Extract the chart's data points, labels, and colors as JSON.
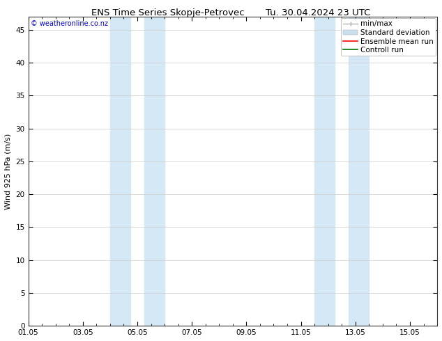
{
  "title_left": "ENS Time Series Skopje-Petrovec",
  "title_right": "Tu. 30.04.2024 23 UTC",
  "ylabel": "Wind 925 hPa (m/s)",
  "watermark": "© weatheronline.co.nz",
  "xtick_labels": [
    "01.05",
    "03.05",
    "05.05",
    "07.05",
    "09.05",
    "11.05",
    "13.05",
    "15.05"
  ],
  "xtick_positions": [
    0,
    2,
    4,
    6,
    8,
    10,
    12,
    14
  ],
  "ylim": [
    0,
    47
  ],
  "ytick_positions": [
    0,
    5,
    10,
    15,
    20,
    25,
    30,
    35,
    40,
    45
  ],
  "ytick_labels": [
    "0",
    "5",
    "10",
    "15",
    "20",
    "25",
    "30",
    "35",
    "40",
    "45"
  ],
  "shaded_regions": [
    {
      "xstart": 3.0,
      "xend": 3.5,
      "color": "#dbeaf5"
    },
    {
      "xstart": 3.5,
      "xend": 4.5,
      "color": "#dbeaf5"
    },
    {
      "xstart": 4.5,
      "xend": 5.0,
      "color": "#dbeaf5"
    },
    {
      "xstart": 10.5,
      "xend": 11.0,
      "color": "#dbeaf5"
    },
    {
      "xstart": 11.0,
      "xend": 12.0,
      "color": "#dbeaf5"
    },
    {
      "xstart": 12.0,
      "xend": 12.5,
      "color": "#dbeaf5"
    }
  ],
  "bg_color": "#ffffff",
  "plot_bg_color": "#ffffff",
  "legend_items": [
    {
      "label": "min/max",
      "color": "#aaaaaa",
      "lw": 1.0
    },
    {
      "label": "Standard deviation",
      "color": "#c8dff0",
      "lw": 6
    },
    {
      "label": "Ensemble mean run",
      "color": "#ff0000",
      "lw": 1.2
    },
    {
      "label": "Controll run",
      "color": "#007700",
      "lw": 1.2
    }
  ],
  "title_fontsize": 9.5,
  "watermark_color": "#0000cc",
  "watermark_fontsize": 7,
  "axis_label_fontsize": 8,
  "tick_fontsize": 7.5,
  "legend_fontsize": 7.5,
  "total_days": 15,
  "figwidth": 6.34,
  "figheight": 4.9,
  "dpi": 100
}
